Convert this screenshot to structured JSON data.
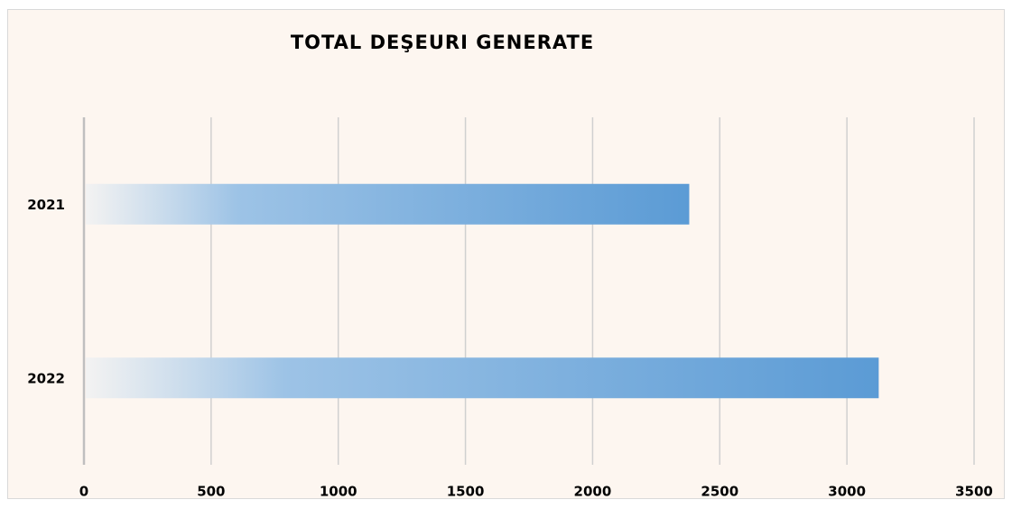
{
  "chart_data": {
    "type": "bar",
    "orientation": "horizontal",
    "title": "TOTAL DEŞEURI GENERATE",
    "categories": [
      "2021",
      "2022"
    ],
    "values": [
      2380,
      3125
    ],
    "color": "#5b9bd5",
    "xlim": [
      0,
      3500
    ],
    "xticks": [
      0,
      500,
      1000,
      1500,
      2000,
      2500,
      3000,
      3500
    ],
    "grid": true
  }
}
